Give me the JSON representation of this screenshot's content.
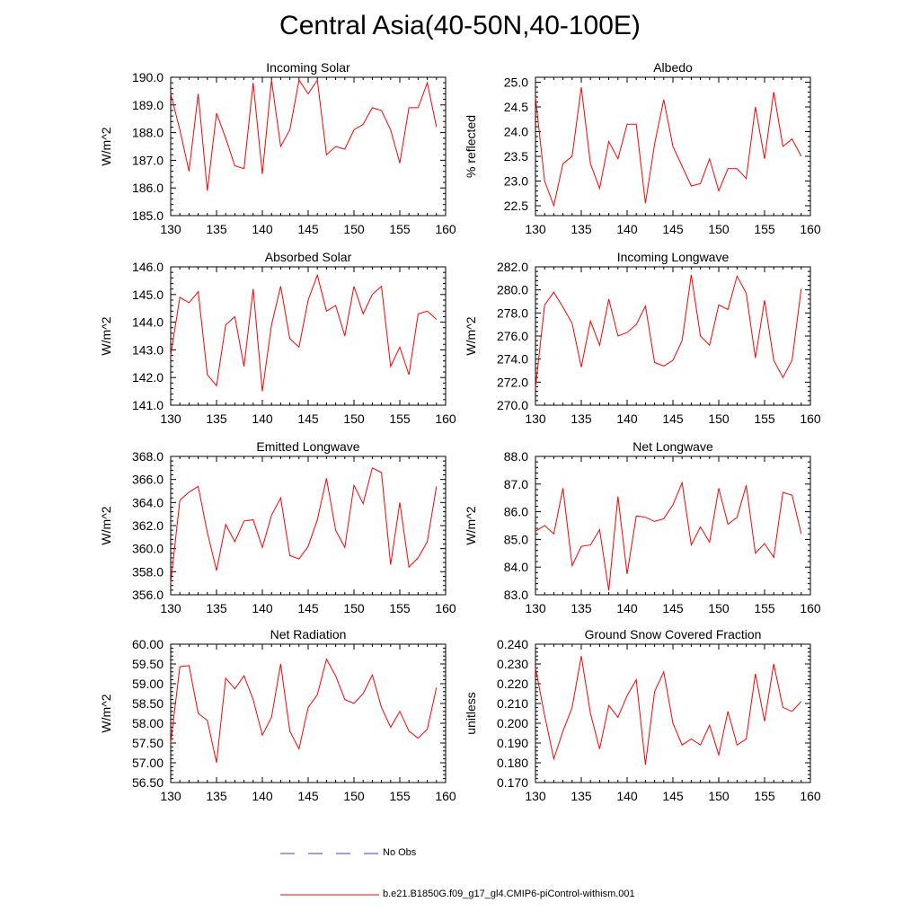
{
  "title": "Central Asia(40-50N,40-100E)",
  "colors": {
    "model": "#ff0000",
    "obs": "#3b3bd6",
    "axis": "#000000"
  },
  "legend": {
    "obs_label": "No Obs",
    "model_label": "b.e21.B1850G.f09_g17_gl4.CMIP6-piControl-withism.001"
  },
  "chart_data": [
    {
      "type": "line",
      "title": "Incoming Solar",
      "ylabel": "W/m^2",
      "xlim": [
        130,
        160
      ],
      "ylim": [
        185.0,
        190.0
      ],
      "xticks": [
        130,
        135,
        140,
        145,
        150,
        155,
        160
      ],
      "yticks": [
        "185.0",
        "186.0",
        "187.0",
        "188.0",
        "189.0",
        "190.0"
      ],
      "x": [
        130,
        131,
        132,
        133,
        134,
        135,
        136,
        137,
        138,
        139,
        140,
        141,
        142,
        143,
        144,
        145,
        146,
        147,
        148,
        149,
        150,
        151,
        152,
        153,
        154,
        155,
        156,
        157,
        158,
        159
      ],
      "series": [
        {
          "values": [
            189.4,
            188.1,
            186.6,
            189.4,
            185.9,
            188.7,
            187.8,
            186.8,
            186.7,
            189.8,
            186.5,
            189.9,
            187.5,
            188.1,
            189.9,
            189.4,
            189.9,
            187.2,
            187.5,
            187.4,
            188.1,
            188.3,
            188.9,
            188.8,
            188.1,
            186.9,
            188.9,
            188.9,
            189.8,
            188.2
          ]
        }
      ]
    },
    {
      "type": "line",
      "title": "Albedo",
      "ylabel": "% reflected",
      "xlim": [
        130,
        160
      ],
      "ylim": [
        22.3,
        25.1
      ],
      "xticks": [
        130,
        135,
        140,
        145,
        150,
        155,
        160
      ],
      "yticks": [
        "22.5",
        "23.0",
        "23.5",
        "24.0",
        "24.5",
        "25.0"
      ],
      "x": [
        130,
        131,
        132,
        133,
        134,
        135,
        136,
        137,
        138,
        139,
        140,
        141,
        142,
        143,
        144,
        145,
        146,
        147,
        148,
        149,
        150,
        151,
        152,
        153,
        154,
        155,
        156,
        157,
        158,
        159
      ],
      "series": [
        {
          "values": [
            24.7,
            23.0,
            22.5,
            23.35,
            23.5,
            24.9,
            23.35,
            22.85,
            23.8,
            23.45,
            24.15,
            24.15,
            22.55,
            23.75,
            24.65,
            23.7,
            23.3,
            22.9,
            22.95,
            23.45,
            22.8,
            23.25,
            23.25,
            23.05,
            24.5,
            23.45,
            24.8,
            23.7,
            23.85,
            23.5
          ]
        }
      ]
    },
    {
      "type": "line",
      "title": "Absorbed Solar",
      "ylabel": "W/m^2",
      "xlim": [
        130,
        160
      ],
      "ylim": [
        141.0,
        146.0
      ],
      "xticks": [
        130,
        135,
        140,
        145,
        150,
        155,
        160
      ],
      "yticks": [
        "141.0",
        "142.0",
        "143.0",
        "144.0",
        "145.0",
        "146.0"
      ],
      "x": [
        130,
        131,
        132,
        133,
        134,
        135,
        136,
        137,
        138,
        139,
        140,
        141,
        142,
        143,
        144,
        145,
        146,
        147,
        148,
        149,
        150,
        151,
        152,
        153,
        154,
        155,
        156,
        157,
        158,
        159
      ],
      "series": [
        {
          "values": [
            142.8,
            144.9,
            144.7,
            145.1,
            142.1,
            141.7,
            143.9,
            144.2,
            142.4,
            145.2,
            141.5,
            143.9,
            145.3,
            143.4,
            143.1,
            144.8,
            145.7,
            144.4,
            144.6,
            143.5,
            145.3,
            144.3,
            145.0,
            145.3,
            142.4,
            143.1,
            142.1,
            144.3,
            144.4,
            144.1
          ]
        }
      ]
    },
    {
      "type": "line",
      "title": "Incoming Longwave",
      "ylabel": "W/m^2",
      "xlim": [
        130,
        160
      ],
      "ylim": [
        270.0,
        282.0
      ],
      "xticks": [
        130,
        135,
        140,
        145,
        150,
        155,
        160
      ],
      "yticks": [
        "270.0",
        "272.0",
        "274.0",
        "276.0",
        "278.0",
        "280.0",
        "282.0"
      ],
      "x": [
        130,
        131,
        132,
        133,
        134,
        135,
        136,
        137,
        138,
        139,
        140,
        141,
        142,
        143,
        144,
        145,
        146,
        147,
        148,
        149,
        150,
        151,
        152,
        153,
        154,
        155,
        156,
        157,
        158,
        159
      ],
      "series": [
        {
          "values": [
            271.5,
            278.7,
            279.8,
            278.5,
            277.1,
            273.3,
            277.3,
            275.2,
            279.2,
            276.0,
            276.3,
            277.0,
            278.6,
            273.7,
            273.4,
            273.9,
            275.6,
            281.3,
            276.0,
            275.2,
            278.7,
            278.3,
            281.2,
            279.7,
            274.1,
            279.1,
            273.9,
            272.4,
            273.9,
            280.1
          ]
        }
      ]
    },
    {
      "type": "line",
      "title": "Emitted Longwave",
      "ylabel": "W/m^2",
      "xlim": [
        130,
        160
      ],
      "ylim": [
        356.0,
        368.0
      ],
      "xticks": [
        130,
        135,
        140,
        145,
        150,
        155,
        160
      ],
      "yticks": [
        "356.0",
        "358.0",
        "360.0",
        "362.0",
        "364.0",
        "366.0",
        "368.0"
      ],
      "x": [
        130,
        131,
        132,
        133,
        134,
        135,
        136,
        137,
        138,
        139,
        140,
        141,
        142,
        143,
        144,
        145,
        146,
        147,
        148,
        149,
        150,
        151,
        152,
        153,
        154,
        155,
        156,
        157,
        158,
        159
      ],
      "series": [
        {
          "values": [
            357.0,
            364.2,
            364.9,
            365.4,
            361.4,
            358.1,
            362.1,
            360.6,
            362.4,
            362.5,
            360.1,
            362.9,
            364.4,
            359.4,
            359.1,
            360.2,
            362.5,
            366.1,
            361.6,
            360.1,
            365.5,
            363.9,
            367.0,
            366.6,
            358.6,
            364.0,
            358.4,
            359.2,
            360.6,
            365.4
          ]
        }
      ]
    },
    {
      "type": "line",
      "title": "Net Longwave",
      "ylabel": "W/m^2",
      "xlim": [
        130,
        160
      ],
      "ylim": [
        83.0,
        88.0
      ],
      "xticks": [
        130,
        135,
        140,
        145,
        150,
        155,
        160
      ],
      "yticks": [
        "83.0",
        "84.0",
        "85.0",
        "86.0",
        "87.0",
        "88.0"
      ],
      "x": [
        130,
        131,
        132,
        133,
        134,
        135,
        136,
        137,
        138,
        139,
        140,
        141,
        142,
        143,
        144,
        145,
        146,
        147,
        148,
        149,
        150,
        151,
        152,
        153,
        154,
        155,
        156,
        157,
        158,
        159
      ],
      "series": [
        {
          "values": [
            85.3,
            85.5,
            85.2,
            86.85,
            84.05,
            84.75,
            84.8,
            85.35,
            83.15,
            86.55,
            83.75,
            85.85,
            85.8,
            85.65,
            85.75,
            86.25,
            87.05,
            84.8,
            85.45,
            84.9,
            86.85,
            85.55,
            85.8,
            86.95,
            84.5,
            84.85,
            84.35,
            86.7,
            86.6,
            85.2
          ]
        }
      ]
    },
    {
      "type": "line",
      "title": "Net Radiation",
      "ylabel": "W/m^2",
      "xlim": [
        130,
        160
      ],
      "ylim": [
        56.5,
        60.0
      ],
      "xticks": [
        130,
        135,
        140,
        145,
        150,
        155,
        160
      ],
      "yticks": [
        "56.50",
        "57.00",
        "57.50",
        "58.00",
        "58.50",
        "59.00",
        "59.50",
        "60.00"
      ],
      "x": [
        130,
        131,
        132,
        133,
        134,
        135,
        136,
        137,
        138,
        139,
        140,
        141,
        142,
        143,
        144,
        145,
        146,
        147,
        148,
        149,
        150,
        151,
        152,
        153,
        154,
        155,
        156,
        157,
        158,
        159
      ],
      "series": [
        {
          "values": [
            57.5,
            59.43,
            59.46,
            58.25,
            58.07,
            57.0,
            59.14,
            58.87,
            59.2,
            58.6,
            57.7,
            58.15,
            59.5,
            57.8,
            57.35,
            58.4,
            58.72,
            59.62,
            59.2,
            58.6,
            58.5,
            58.75,
            59.22,
            58.4,
            57.9,
            58.3,
            57.8,
            57.62,
            57.85,
            58.9
          ]
        }
      ]
    },
    {
      "type": "line",
      "title": "Ground Snow Covered Fraction",
      "ylabel": "unitless",
      "xlim": [
        130,
        160
      ],
      "ylim": [
        0.17,
        0.24
      ],
      "xticks": [
        130,
        135,
        140,
        145,
        150,
        155,
        160
      ],
      "yticks": [
        "0.170",
        "0.180",
        "0.190",
        "0.200",
        "0.210",
        "0.220",
        "0.230",
        "0.240"
      ],
      "x": [
        130,
        131,
        132,
        133,
        134,
        135,
        136,
        137,
        138,
        139,
        140,
        141,
        142,
        143,
        144,
        145,
        146,
        147,
        148,
        149,
        150,
        151,
        152,
        153,
        154,
        155,
        156,
        157,
        158,
        159
      ],
      "series": [
        {
          "values": [
            0.228,
            0.204,
            0.182,
            0.196,
            0.208,
            0.234,
            0.205,
            0.187,
            0.209,
            0.203,
            0.214,
            0.222,
            0.179,
            0.216,
            0.226,
            0.2,
            0.189,
            0.192,
            0.189,
            0.199,
            0.184,
            0.206,
            0.189,
            0.192,
            0.225,
            0.201,
            0.23,
            0.208,
            0.206,
            0.211
          ]
        }
      ]
    }
  ]
}
